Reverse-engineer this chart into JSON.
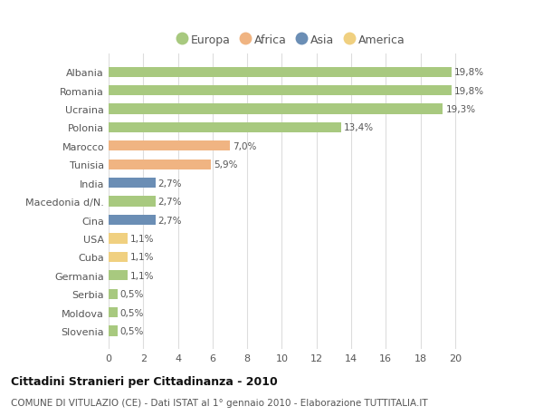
{
  "countries": [
    "Albania",
    "Romania",
    "Ucraina",
    "Polonia",
    "Marocco",
    "Tunisia",
    "India",
    "Macedonia d/N.",
    "Cina",
    "USA",
    "Cuba",
    "Germania",
    "Serbia",
    "Moldova",
    "Slovenia"
  ],
  "values": [
    19.8,
    19.8,
    19.3,
    13.4,
    7.0,
    5.9,
    2.7,
    2.7,
    2.7,
    1.1,
    1.1,
    1.1,
    0.5,
    0.5,
    0.5
  ],
  "labels": [
    "19,8%",
    "19,8%",
    "19,3%",
    "13,4%",
    "7,0%",
    "5,9%",
    "2,7%",
    "2,7%",
    "2,7%",
    "1,1%",
    "1,1%",
    "1,1%",
    "0,5%",
    "0,5%",
    "0,5%"
  ],
  "continents": [
    "Europa",
    "Europa",
    "Europa",
    "Europa",
    "Africa",
    "Africa",
    "Asia",
    "Europa",
    "Asia",
    "America",
    "America",
    "Europa",
    "Europa",
    "Europa",
    "Europa"
  ],
  "colors": {
    "Europa": "#a8c97f",
    "Africa": "#f0b482",
    "Asia": "#6b8eb5",
    "America": "#f0d080"
  },
  "legend_order": [
    "Europa",
    "Africa",
    "Asia",
    "America"
  ],
  "xlim": [
    0,
    21
  ],
  "xticks": [
    0,
    2,
    4,
    6,
    8,
    10,
    12,
    14,
    16,
    18,
    20
  ],
  "title": "Cittadini Stranieri per Cittadinanza - 2010",
  "subtitle": "COMUNE DI VITULAZIO (CE) - Dati ISTAT al 1° gennaio 2010 - Elaborazione TUTTITALIA.IT",
  "bg_color": "#ffffff",
  "grid_color": "#dddddd",
  "bar_height": 0.55,
  "label_fontsize": 7.5,
  "ytick_fontsize": 8,
  "xtick_fontsize": 8
}
